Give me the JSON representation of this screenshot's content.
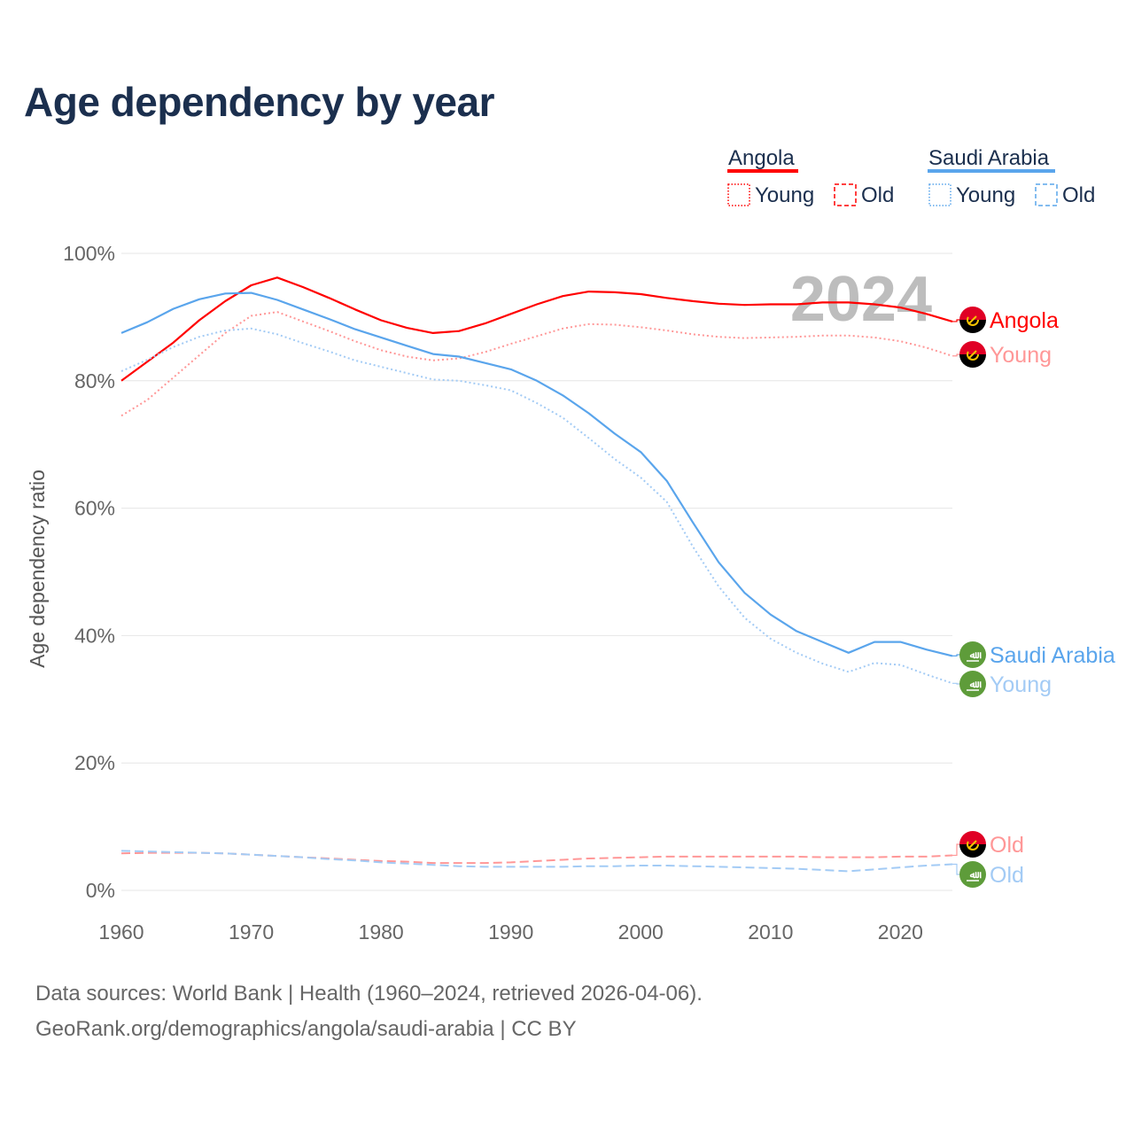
{
  "title": "Age dependency by year",
  "source_line1": "Data sources: World Bank | Health (1960–2024, retrieved 2026-04-06).",
  "source_line2": "GeoRank.org/demographics/angola/saudi-arabia | CC BY",
  "colors": {
    "angola": "#ff0000",
    "angola_light": "#ff9797",
    "saudi": "#5aa5ec",
    "saudi_light": "#a3cbf5"
  },
  "chart_data": {
    "type": "line",
    "title": "Age dependency by year",
    "xlabel": "",
    "ylabel": "Age dependency ratio",
    "xlim": [
      1960,
      2024
    ],
    "ylim": [
      0,
      100
    ],
    "grid": true,
    "year_watermark": "2024",
    "x_ticks": [
      1960,
      1970,
      1980,
      1990,
      2000,
      2010,
      2020
    ],
    "x_tick_labels": [
      "1960",
      "1970",
      "1980",
      "1990",
      "2000",
      "2010",
      "2020"
    ],
    "y_ticks": [
      0,
      20,
      40,
      60,
      80,
      100
    ],
    "y_tick_labels": [
      "0%",
      "20%",
      "40%",
      "60%",
      "80%",
      "100%"
    ],
    "legend": {
      "placement": "top-right",
      "groups": [
        {
          "name": "Angola",
          "items": [
            "Young",
            "Old"
          ]
        },
        {
          "name": "Saudi Arabia",
          "items": [
            "Young",
            "Old"
          ]
        }
      ]
    },
    "x": [
      1960,
      1962,
      1964,
      1966,
      1968,
      1970,
      1972,
      1974,
      1976,
      1978,
      1980,
      1982,
      1984,
      1986,
      1988,
      1990,
      1992,
      1994,
      1996,
      1998,
      2000,
      2002,
      2004,
      2006,
      2008,
      2010,
      2012,
      2014,
      2016,
      2018,
      2020,
      2022,
      2024
    ],
    "series": [
      {
        "name": "Angola",
        "end_label": "Angola",
        "country": "angola",
        "style": "solid",
        "light": false,
        "values": [
          80,
          83,
          86,
          89.5,
          92.5,
          95,
          96.2,
          94.7,
          93,
          91.2,
          89.5,
          88.3,
          87.5,
          87.8,
          89,
          90.5,
          92,
          93.3,
          94,
          93.9,
          93.6,
          93,
          92.5,
          92.1,
          91.9,
          92,
          92,
          92.3,
          92.3,
          92,
          91.5,
          90.5,
          89.3
        ]
      },
      {
        "name": "Angola Young",
        "end_label": "Young",
        "country": "angola",
        "style": "dotted",
        "light": true,
        "values": [
          74.5,
          77,
          80.5,
          84,
          87.5,
          90.2,
          90.8,
          89.3,
          87.8,
          86.2,
          84.8,
          83.8,
          83.2,
          83.5,
          84.5,
          85.8,
          87,
          88.2,
          88.9,
          88.8,
          88.4,
          87.9,
          87.3,
          86.9,
          86.7,
          86.8,
          86.9,
          87.1,
          87.1,
          86.8,
          86.2,
          85.2,
          83.9
        ]
      },
      {
        "name": "Angola Old",
        "end_label": "Old",
        "country": "angola",
        "style": "dashed",
        "light": true,
        "values": [
          5.8,
          5.9,
          5.9,
          5.9,
          5.8,
          5.6,
          5.4,
          5.2,
          5.0,
          4.8,
          4.6,
          4.5,
          4.3,
          4.3,
          4.3,
          4.4,
          4.6,
          4.8,
          5.0,
          5.1,
          5.2,
          5.3,
          5.3,
          5.3,
          5.3,
          5.3,
          5.3,
          5.2,
          5.2,
          5.2,
          5.3,
          5.3,
          5.5
        ]
      },
      {
        "name": "Saudi Arabia",
        "end_label": "Saudi Arabia",
        "country": "saudi",
        "style": "solid",
        "light": false,
        "values": [
          87.5,
          89.2,
          91.3,
          92.8,
          93.7,
          93.8,
          92.7,
          91.2,
          89.7,
          88.1,
          86.8,
          85.5,
          84.2,
          83.8,
          82.8,
          81.8,
          80,
          77.7,
          74.9,
          71.7,
          68.8,
          64.3,
          57.8,
          51.5,
          46.7,
          43.3,
          40.7,
          39,
          37.3,
          39,
          39,
          37.8,
          36.8
        ]
      },
      {
        "name": "Saudi Arabia Young",
        "end_label": "Young",
        "country": "saudi",
        "style": "dotted",
        "light": true,
        "values": [
          81.5,
          83.3,
          85.3,
          86.9,
          87.9,
          88.2,
          87.3,
          85.9,
          84.6,
          83.2,
          82.2,
          81.2,
          80.2,
          80,
          79.3,
          78.5,
          76.5,
          74.2,
          71,
          67.7,
          64.8,
          61,
          54,
          47.7,
          42.8,
          39.5,
          37.3,
          35.6,
          34.3,
          35.7,
          35.4,
          33.9,
          32.5
        ]
      },
      {
        "name": "Saudi Arabia Old",
        "end_label": "Old",
        "country": "saudi",
        "style": "dashed",
        "light": true,
        "values": [
          6.2,
          6.1,
          6.0,
          5.9,
          5.8,
          5.6,
          5.4,
          5.2,
          4.9,
          4.7,
          4.4,
          4.2,
          4.0,
          3.8,
          3.7,
          3.7,
          3.7,
          3.7,
          3.8,
          3.8,
          3.9,
          3.9,
          3.8,
          3.7,
          3.6,
          3.5,
          3.4,
          3.2,
          3.0,
          3.3,
          3.6,
          3.9,
          4.1
        ]
      }
    ]
  }
}
